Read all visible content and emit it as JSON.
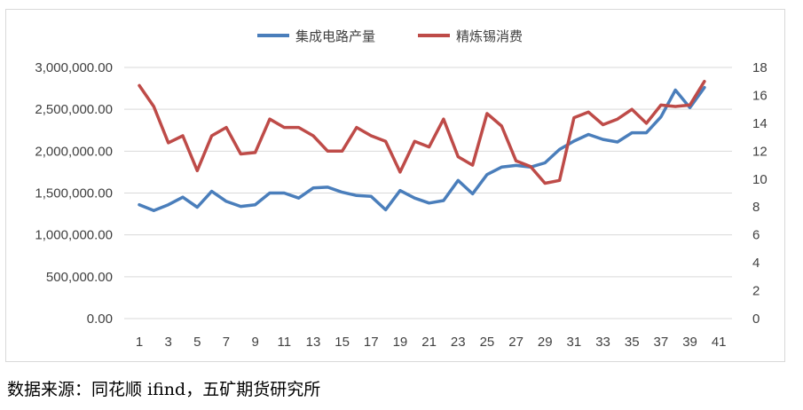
{
  "chart_data": {
    "type": "line",
    "title": "",
    "x": [
      1,
      2,
      3,
      4,
      5,
      6,
      7,
      8,
      9,
      10,
      11,
      12,
      13,
      14,
      15,
      16,
      17,
      18,
      19,
      20,
      21,
      22,
      23,
      24,
      25,
      26,
      27,
      28,
      29,
      30,
      31,
      32,
      33,
      34,
      35,
      36,
      37,
      38,
      39,
      40
    ],
    "x_tick_labels": [
      "1",
      "3",
      "5",
      "7",
      "9",
      "11",
      "13",
      "15",
      "17",
      "19",
      "21",
      "23",
      "25",
      "27",
      "29",
      "31",
      "33",
      "35",
      "37",
      "39",
      "41"
    ],
    "xlim": [
      1,
      41
    ],
    "y_left": {
      "ylim": [
        0,
        3000000
      ],
      "tick_labels": [
        "0.00",
        "500,000.00",
        "1,000,000.00",
        "1,500,000.00",
        "2,000,000.00",
        "2,500,000.00",
        "3,000,000.00"
      ]
    },
    "y_right": {
      "ylim": [
        0,
        18
      ],
      "tick_labels": [
        "0",
        "2",
        "4",
        "6",
        "8",
        "10",
        "12",
        "14",
        "16",
        "18"
      ]
    },
    "grid": "horizontal",
    "legend_position": "top",
    "series": [
      {
        "name": "集成电路产量",
        "axis": "left",
        "color": "#4a7ebb",
        "values": [
          1360000,
          1290000,
          1360000,
          1450000,
          1330000,
          1520000,
          1400000,
          1340000,
          1360000,
          1500000,
          1500000,
          1440000,
          1560000,
          1570000,
          1510000,
          1470000,
          1460000,
          1300000,
          1530000,
          1440000,
          1380000,
          1410000,
          1650000,
          1490000,
          1720000,
          1810000,
          1830000,
          1810000,
          1860000,
          2020000,
          2120000,
          2200000,
          2140000,
          2110000,
          2220000,
          2220000,
          2410000,
          2730000,
          2520000,
          2760000
        ]
      },
      {
        "name": "精炼锡消费",
        "axis": "right",
        "color": "#be4b48",
        "values": [
          16.7,
          15.2,
          12.6,
          13.1,
          10.6,
          13.1,
          13.7,
          11.8,
          11.9,
          14.3,
          13.7,
          13.7,
          13.1,
          12.0,
          12.0,
          13.7,
          13.1,
          12.7,
          10.5,
          12.7,
          12.3,
          14.3,
          11.6,
          11.0,
          14.7,
          13.8,
          11.3,
          10.9,
          9.7,
          9.9,
          14.4,
          14.8,
          13.9,
          14.3,
          15.0,
          14.0,
          15.3,
          15.2,
          15.3,
          17.0
        ]
      }
    ]
  },
  "source_note": "数据来源：同花顺 ifind，五矿期货研究所"
}
